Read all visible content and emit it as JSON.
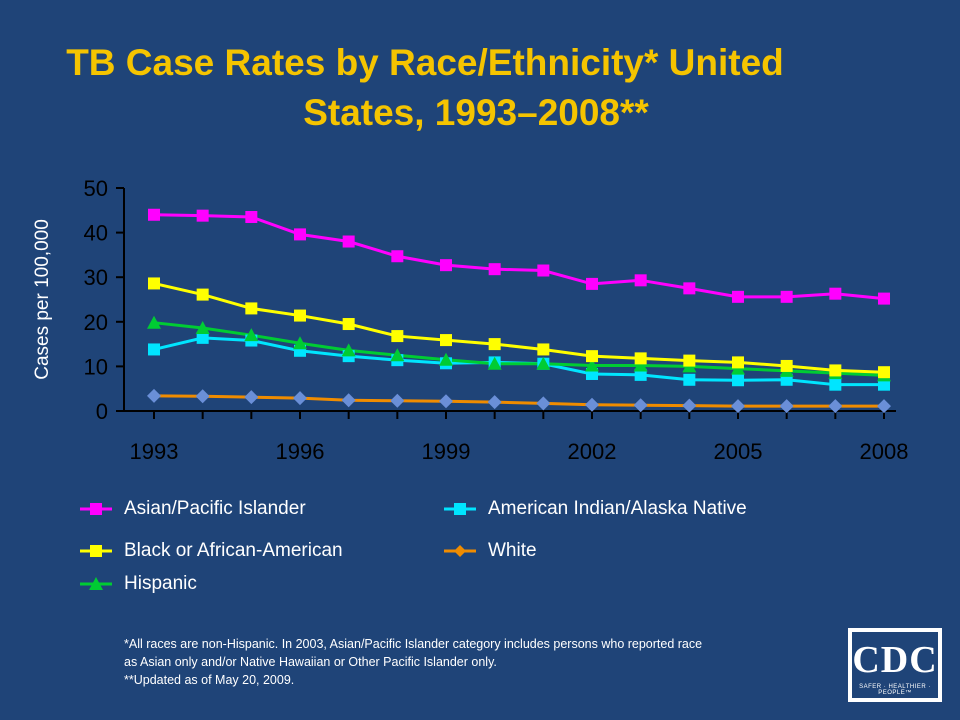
{
  "title_line1": "TB Case Rates by Race/Ethnicity* United",
  "title_line2": "States, 1993–2008**",
  "chart_data": {
    "type": "line",
    "title": "TB Case Rates by Race/Ethnicity* United States, 1993–2008**",
    "ylabel": "Cases per 100,000",
    "xlabel": "",
    "ylim": [
      0,
      50
    ],
    "yticks": [
      0,
      10,
      20,
      30,
      40,
      50
    ],
    "xticks": [
      1993,
      1996,
      1999,
      2002,
      2005,
      2008
    ],
    "x": [
      1993,
      1994,
      1995,
      1996,
      1997,
      1998,
      1999,
      2000,
      2001,
      2002,
      2003,
      2004,
      2005,
      2006,
      2007,
      2008
    ],
    "legend_position": "bottom",
    "series": [
      {
        "name": "Asian/Pacific Islander",
        "color": "#ff00ff",
        "marker": "square",
        "values": [
          44.0,
          43.8,
          43.5,
          39.6,
          38.0,
          34.7,
          32.7,
          31.8,
          31.5,
          28.5,
          29.3,
          27.5,
          25.6,
          25.6,
          26.3,
          25.2
        ]
      },
      {
        "name": "Black or African-American",
        "color": "#ffff00",
        "marker": "square",
        "values": [
          28.6,
          26.1,
          23.0,
          21.4,
          19.5,
          16.8,
          15.9,
          15.0,
          13.8,
          12.3,
          11.8,
          11.3,
          10.9,
          10.1,
          9.1,
          8.7
        ]
      },
      {
        "name": "Hispanic",
        "color": "#00cc33",
        "marker": "triangle",
        "values": [
          19.8,
          18.6,
          17.0,
          15.2,
          13.6,
          12.5,
          11.5,
          10.6,
          10.6,
          10.2,
          10.2,
          10.0,
          9.5,
          9.0,
          8.5,
          8.0
        ]
      },
      {
        "name": "American Indian/Alaska Native",
        "color": "#00e5ff",
        "marker": "square",
        "values": [
          13.8,
          16.4,
          15.8,
          13.5,
          12.3,
          11.4,
          10.7,
          10.9,
          10.6,
          8.3,
          8.1,
          7.0,
          6.9,
          7.0,
          5.9,
          5.9
        ]
      },
      {
        "name": "White",
        "color": "#f08c00",
        "marker": "diamond",
        "marker_color": "#6a8fd8",
        "values": [
          3.4,
          3.3,
          3.1,
          2.9,
          2.4,
          2.3,
          2.2,
          2.0,
          1.7,
          1.4,
          1.3,
          1.2,
          1.1,
          1.1,
          1.1,
          1.1
        ]
      }
    ]
  },
  "legend": [
    {
      "label": "Asian/Pacific Islander",
      "color": "#ff00ff",
      "marker": "square"
    },
    {
      "label": "American Indian/Alaska Native",
      "color": "#00e5ff",
      "marker": "square"
    },
    {
      "label": "Black or African-American",
      "color": "#ffff00",
      "marker": "square"
    },
    {
      "label": "White",
      "color": "#f08c00",
      "marker": "diamond",
      "marker_color": "#6a8fd8"
    },
    {
      "label": "Hispanic",
      "color": "#00cc33",
      "marker": "triangle"
    }
  ],
  "footnote_line1": "*All races are non-Hispanic. In 2003, Asian/Pacific Islander category includes persons who reported race",
  "footnote_line2": "as Asian only and/or Native Hawaiian or Other Pacific Islander only.",
  "footnote_line3": "**Updated as of May 20, 2009.",
  "logo_text": "CDC",
  "logo_tagline": "SAFER · HEALTHIER · PEOPLE™",
  "colors": {
    "background": "#1f4478",
    "title": "#f5c400",
    "axis": "#000000"
  }
}
